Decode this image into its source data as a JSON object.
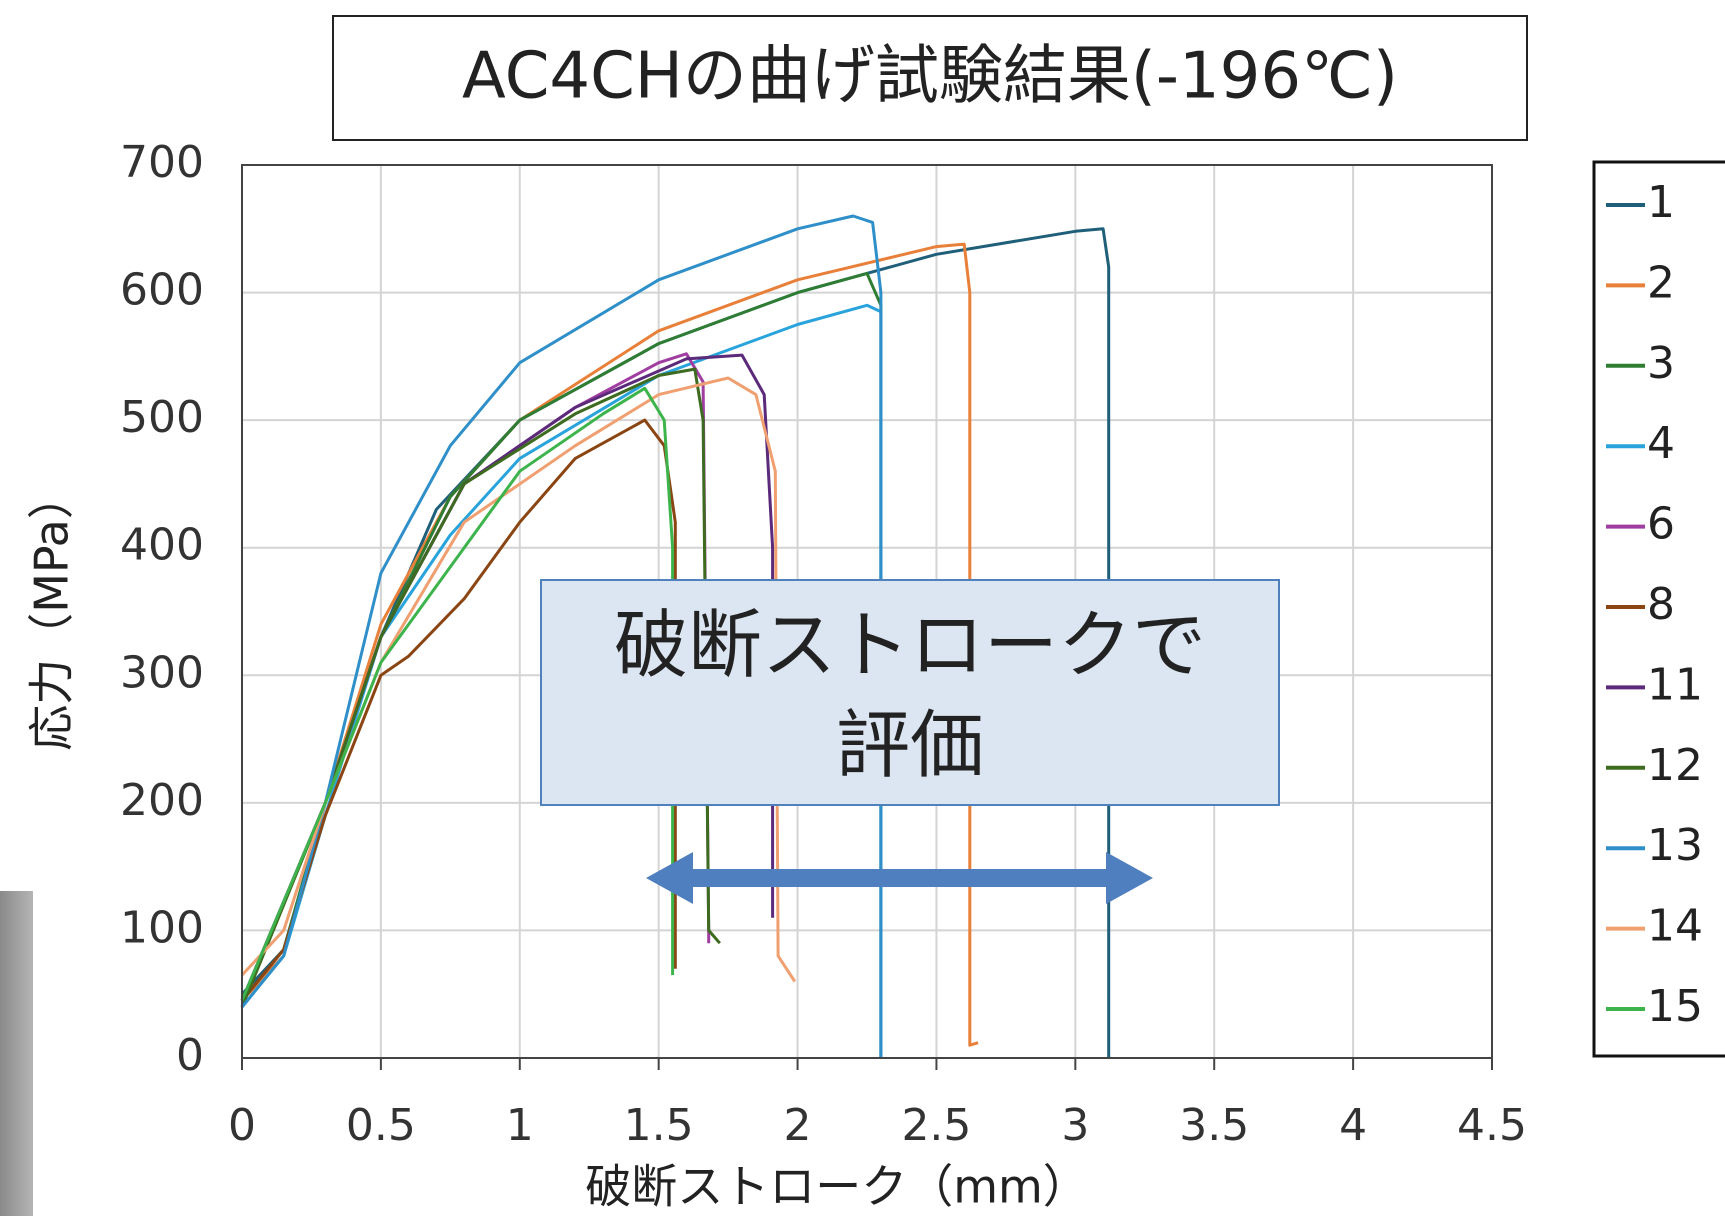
{
  "chart_data": {
    "type": "line",
    "title": "AC4CHの曲げ試験結果(-196℃)",
    "x_label": "破断ストローク（mm）",
    "y_label": "応力（MPa）",
    "annotation": [
      "破断ストロークで",
      "評価"
    ],
    "xlim": [
      0,
      4.5
    ],
    "xticks": [
      0,
      0.5,
      1,
      1.5,
      2,
      2.5,
      3,
      3.5,
      4,
      4.5
    ],
    "ylim": [
      0,
      700
    ],
    "yticks": [
      0,
      100,
      200,
      300,
      400,
      500,
      600,
      700
    ],
    "grid": true,
    "legend": "right",
    "series": [
      {
        "name": "1",
        "color": "#1f5f7a",
        "x": [
          0,
          0.15,
          0.3,
          0.5,
          0.7,
          1.0,
          1.5,
          2.0,
          2.5,
          3.0,
          3.1,
          3.12,
          3.12
        ],
        "values": [
          50,
          85,
          200,
          330,
          430,
          500,
          560,
          600,
          630,
          648,
          650,
          620,
          0
        ]
      },
      {
        "name": "2",
        "color": "#e8803a",
        "x": [
          0,
          0.15,
          0.3,
          0.5,
          0.75,
          1.0,
          1.5,
          2.0,
          2.5,
          2.6,
          2.62,
          2.62,
          2.65
        ],
        "values": [
          45,
          80,
          200,
          340,
          440,
          500,
          570,
          610,
          636,
          638,
          600,
          10,
          12
        ]
      },
      {
        "name": "3",
        "color": "#2e7d32",
        "x": [
          0,
          0.15,
          0.3,
          0.5,
          0.75,
          1.0,
          1.5,
          2.0,
          2.25,
          2.3,
          2.3
        ],
        "values": [
          45,
          85,
          200,
          330,
          440,
          500,
          560,
          600,
          615,
          590,
          0
        ]
      },
      {
        "name": "4",
        "color": "#29a3dc",
        "x": [
          0,
          0.15,
          0.3,
          0.5,
          0.75,
          1.0,
          1.5,
          2.0,
          2.25,
          2.3,
          2.3
        ],
        "values": [
          40,
          80,
          190,
          330,
          410,
          470,
          535,
          575,
          590,
          585,
          0
        ]
      },
      {
        "name": "6",
        "color": "#a03da0",
        "x": [
          0,
          0.3,
          0.5,
          0.8,
          1.2,
          1.5,
          1.6,
          1.66,
          1.68,
          1.68
        ],
        "values": [
          45,
          200,
          330,
          450,
          510,
          545,
          552,
          530,
          100,
          90
        ]
      },
      {
        "name": "8",
        "color": "#8b4513",
        "x": [
          0,
          0.15,
          0.3,
          0.5,
          0.6,
          0.8,
          1.0,
          1.2,
          1.45,
          1.52,
          1.56,
          1.56
        ],
        "values": [
          45,
          85,
          190,
          300,
          315,
          360,
          420,
          470,
          500,
          480,
          420,
          70
        ]
      },
      {
        "name": "11",
        "color": "#5c2a7a",
        "x": [
          0,
          0.3,
          0.5,
          0.8,
          1.2,
          1.6,
          1.8,
          1.88,
          1.91,
          1.91
        ],
        "values": [
          45,
          200,
          330,
          450,
          510,
          548,
          551,
          520,
          400,
          110
        ]
      },
      {
        "name": "12",
        "color": "#3d6b1f",
        "x": [
          0,
          0.3,
          0.5,
          0.8,
          1.2,
          1.5,
          1.63,
          1.66,
          1.68,
          1.72
        ],
        "values": [
          40,
          200,
          330,
          450,
          505,
          535,
          540,
          500,
          100,
          90
        ]
      },
      {
        "name": "13",
        "color": "#2f8fc9",
        "x": [
          0,
          0.15,
          0.3,
          0.5,
          0.75,
          1.0,
          1.5,
          2.0,
          2.2,
          2.27,
          2.3,
          2.3
        ],
        "values": [
          40,
          80,
          200,
          380,
          480,
          545,
          610,
          650,
          660,
          655,
          600,
          0
        ]
      },
      {
        "name": "14",
        "color": "#f0a070",
        "x": [
          0,
          0.15,
          0.3,
          0.5,
          0.8,
          1.2,
          1.5,
          1.75,
          1.85,
          1.92,
          1.93,
          1.99
        ],
        "values": [
          65,
          100,
          200,
          310,
          420,
          480,
          520,
          533,
          520,
          460,
          80,
          60
        ]
      },
      {
        "name": "15",
        "color": "#3cb44b",
        "x": [
          0,
          0.3,
          0.5,
          0.6,
          0.8,
          1.0,
          1.3,
          1.45,
          1.52,
          1.55,
          1.55
        ],
        "values": [
          45,
          200,
          310,
          340,
          400,
          460,
          505,
          525,
          500,
          400,
          65
        ]
      }
    ]
  }
}
